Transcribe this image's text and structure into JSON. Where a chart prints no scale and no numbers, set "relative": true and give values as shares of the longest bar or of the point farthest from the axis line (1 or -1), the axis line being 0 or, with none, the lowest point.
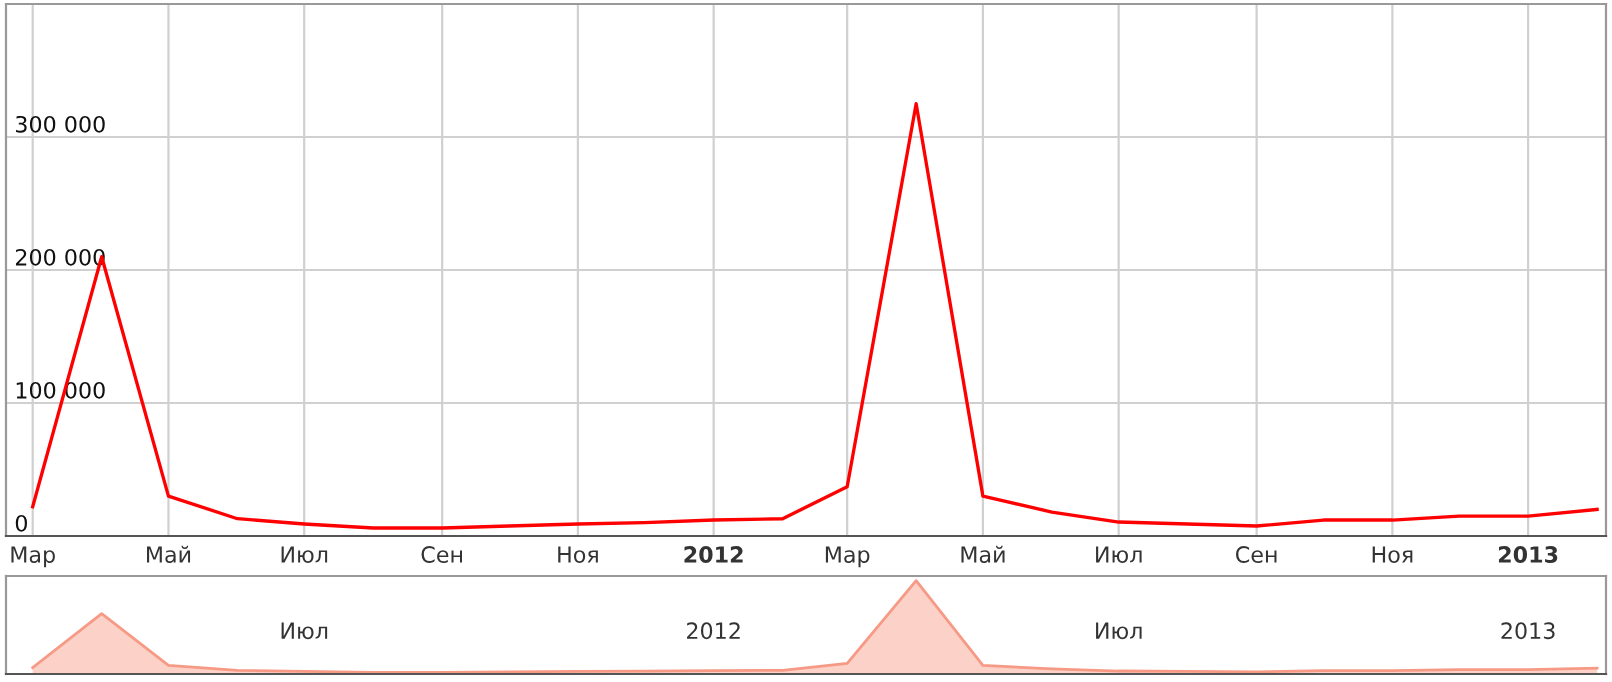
{
  "chart_data": [
    {
      "type": "line",
      "x": [
        "2011-03-01",
        "2011-04-01",
        "2011-05-01",
        "2011-06-01",
        "2011-07-01",
        "2011-08-01",
        "2011-09-01",
        "2011-10-01",
        "2011-11-01",
        "2011-12-01",
        "2012-01-01",
        "2012-02-01",
        "2012-03-01",
        "2012-04-01",
        "2012-05-01",
        "2012-06-01",
        "2012-07-01",
        "2012-08-01",
        "2012-09-01",
        "2012-10-01",
        "2012-11-01",
        "2012-12-01",
        "2013-01-01",
        "2013-02-01"
      ],
      "series": [
        {
          "color": "#ff0000",
          "values": [
            22000,
            210000,
            30000,
            13000,
            9000,
            6000,
            6000,
            7500,
            9000,
            10000,
            12000,
            13000,
            37000,
            325000,
            30000,
            18000,
            10500,
            9000,
            7500,
            12000,
            12000,
            15000,
            15000,
            20000
          ]
        }
      ],
      "xlim": [
        "2011-02-17",
        "2013-02-05"
      ],
      "xticks": [
        {
          "value": "2011-03-01",
          "label": "Мар"
        },
        {
          "value": "2011-05-01",
          "label": "Май"
        },
        {
          "value": "2011-07-01",
          "label": "Июл"
        },
        {
          "value": "2011-09-01",
          "label": "Сен"
        },
        {
          "value": "2011-11-01",
          "label": "Ноя"
        },
        {
          "value": "2012-01-01",
          "label": "2012"
        },
        {
          "value": "2012-03-01",
          "label": "Мар"
        },
        {
          "value": "2012-05-01",
          "label": "Май"
        },
        {
          "value": "2012-07-01",
          "label": "Июл"
        },
        {
          "value": "2012-09-01",
          "label": "Сен"
        },
        {
          "value": "2012-11-01",
          "label": "Ноя"
        },
        {
          "value": "2013-01-01",
          "label": "2013"
        }
      ],
      "ylim": [
        0,
        400000
      ],
      "yticks": [
        {
          "value": 0,
          "label": "0"
        },
        {
          "value": 100000,
          "label": "100 000"
        },
        {
          "value": 200000,
          "label": "200 000"
        },
        {
          "value": 300000,
          "label": "300 000"
        }
      ],
      "grid": true
    },
    {
      "type": "area",
      "relative": true,
      "x": [
        "2011-03-01",
        "2011-04-01",
        "2011-05-01",
        "2011-06-01",
        "2011-07-01",
        "2011-08-01",
        "2011-09-01",
        "2011-10-01",
        "2011-11-01",
        "2011-12-01",
        "2012-01-01",
        "2012-02-01",
        "2012-03-01",
        "2012-04-01",
        "2012-05-01",
        "2012-06-01",
        "2012-07-01",
        "2012-08-01",
        "2012-09-01",
        "2012-10-01",
        "2012-11-01",
        "2012-12-01",
        "2013-01-01",
        "2013-02-01"
      ],
      "series": [
        {
          "color": "#f79a85",
          "values": [
            0.068,
            0.646,
            0.092,
            0.04,
            0.028,
            0.018,
            0.018,
            0.023,
            0.028,
            0.031,
            0.037,
            0.04,
            0.114,
            1,
            0.092,
            0.055,
            0.032,
            0.028,
            0.023,
            0.037,
            0.037,
            0.046,
            0.046,
            0.062
          ]
        }
      ],
      "xlim": [
        "2011-02-17",
        "2013-02-05"
      ],
      "xticks": [
        {
          "value": "2011-07-01",
          "label": "Июл"
        },
        {
          "value": "2012-01-01",
          "label": "2012"
        },
        {
          "value": "2012-07-01",
          "label": "Июл"
        },
        {
          "value": "2013-01-01",
          "label": "2013"
        }
      ],
      "tick_labels": "x"
    }
  ]
}
